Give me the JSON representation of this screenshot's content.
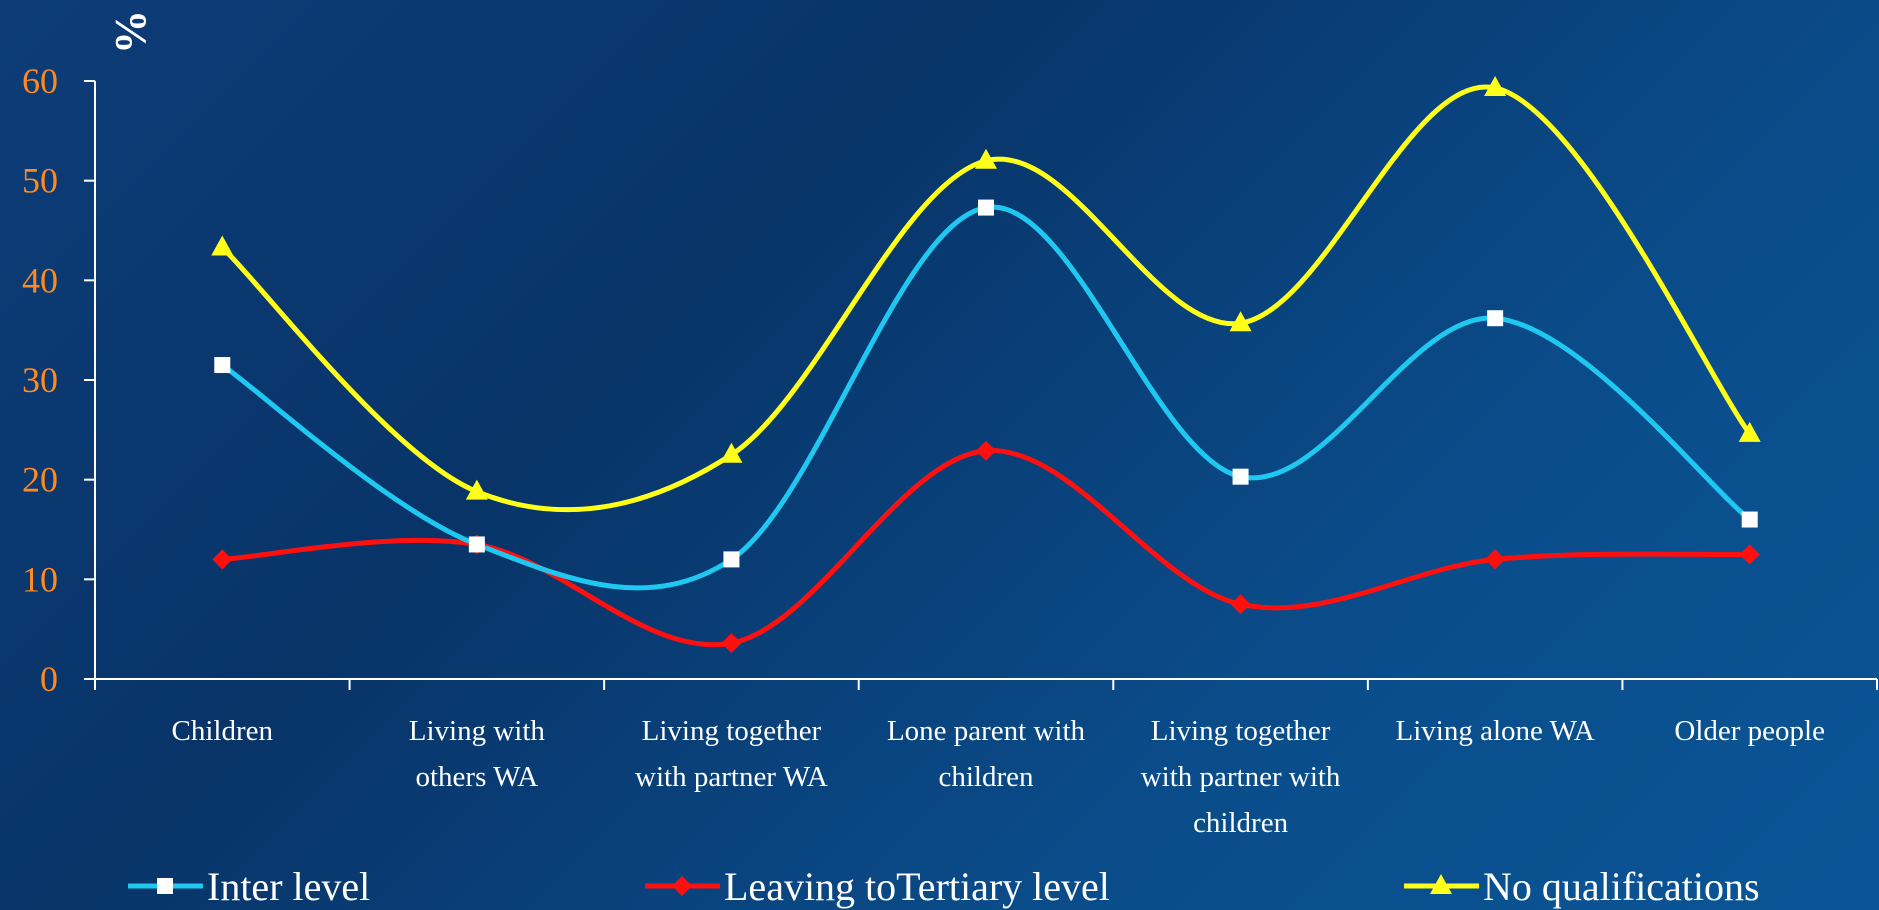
{
  "chart_data": {
    "type": "line",
    "ylabel": "%",
    "xlabel": "",
    "ylim": [
      0,
      60
    ],
    "yticks": [
      "0",
      "10",
      "20",
      "30",
      "40",
      "50",
      "60"
    ],
    "categories": [
      [
        "Children"
      ],
      [
        "Living with",
        "others WA"
      ],
      [
        "Living together",
        "with partner WA"
      ],
      [
        "Lone parent with",
        "children"
      ],
      [
        "Living together",
        "with partner with",
        "children"
      ],
      [
        "Living alone WA"
      ],
      [
        "Older people"
      ]
    ],
    "series": [
      {
        "name": "Inter level",
        "color": "#1ec8f0",
        "marker": "square",
        "marker_color": "#ffffff",
        "values": [
          31.5,
          13.5,
          12,
          47.3,
          20.3,
          36.2,
          16
        ]
      },
      {
        "name": "Leaving toTertiary level",
        "color": "#ff1010",
        "marker": "diamond",
        "marker_color": "#ff1010",
        "values": [
          12,
          13.5,
          3.6,
          22.9,
          7.5,
          12,
          12.5
        ]
      },
      {
        "name": "No qualifications",
        "color": "#ffff1a",
        "marker": "triangle",
        "marker_color": "#ffff1a",
        "values": [
          43.3,
          18.8,
          22.5,
          52,
          35.7,
          59.3,
          24.6
        ]
      }
    ],
    "legend_position": "bottom",
    "grid": false,
    "smooth": true
  }
}
